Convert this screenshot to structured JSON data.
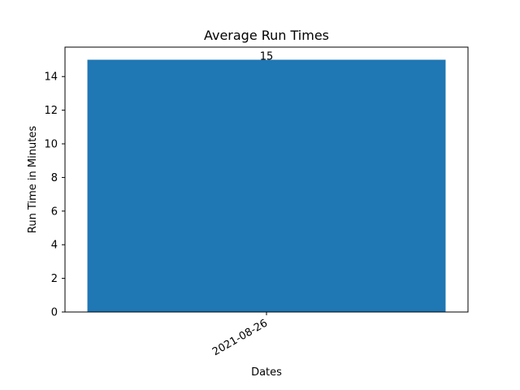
{
  "chart_data": {
    "type": "bar",
    "title": "Average Run Times",
    "xlabel": "Dates",
    "ylabel": "Run Time in Minutes",
    "categories": [
      "2021-08-26"
    ],
    "values": [
      15
    ],
    "data_labels": [
      "15"
    ],
    "ylim": [
      0,
      15.75
    ],
    "yticks": [
      0,
      2,
      4,
      6,
      8,
      10,
      12,
      14
    ],
    "grid": false,
    "bar_color": "#1f77b4",
    "x_tick_label_rotation": "angled",
    "legend": "none"
  }
}
